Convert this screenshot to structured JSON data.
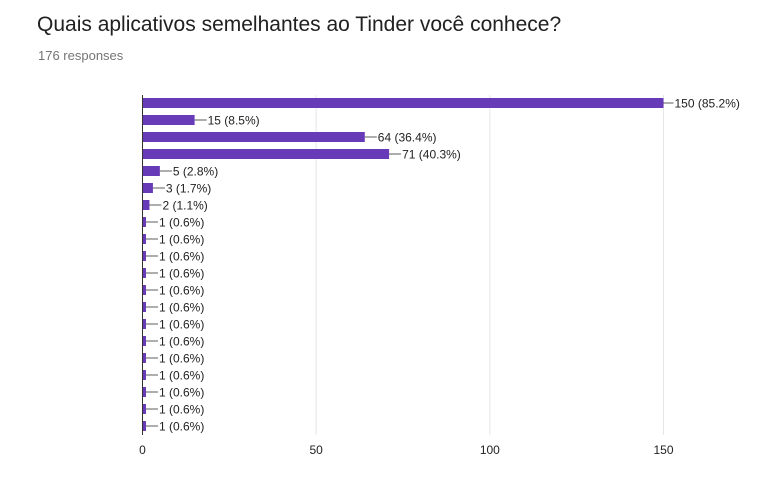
{
  "question": {
    "title": "Quais aplicativos semelhantes ao Tinder você conhece?",
    "responses": "176 responses"
  },
  "colors": {
    "bar": "#673ab7",
    "grid": "#e6e6e6",
    "axis": "#333333",
    "text": "#222222"
  },
  "chart_data": {
    "type": "bar",
    "orientation": "horizontal",
    "categories": [
      "",
      "",
      "",
      "",
      "",
      "",
      "",
      "",
      "",
      "",
      "",
      "",
      "",
      "",
      "",
      "",
      "",
      "",
      "",
      ""
    ],
    "values": [
      150,
      15,
      64,
      71,
      5,
      3,
      2,
      1,
      1,
      1,
      1,
      1,
      1,
      1,
      1,
      1,
      1,
      1,
      1,
      1
    ],
    "data_labels": [
      "150 (85.2%)",
      "15 (8.5%)",
      "64 (36.4%)",
      "71 (40.3%)",
      "5 (2.8%)",
      "3 (1.7%)",
      "2 (1.1%)",
      "1 (0.6%)",
      "1 (0.6%)",
      "1 (0.6%)",
      "1 (0.6%)",
      "1 (0.6%)",
      "1 (0.6%)",
      "1 (0.6%)",
      "1 (0.6%)",
      "1 (0.6%)",
      "1 (0.6%)",
      "1 (0.6%)",
      "1 (0.6%)",
      "1 (0.6%)"
    ],
    "xlim": [
      0,
      150
    ],
    "x_ticks": [
      0,
      50,
      100,
      150
    ],
    "x_tick_labels": [
      "0",
      "50",
      "100",
      "150"
    ],
    "grid": true,
    "legend": "none"
  }
}
